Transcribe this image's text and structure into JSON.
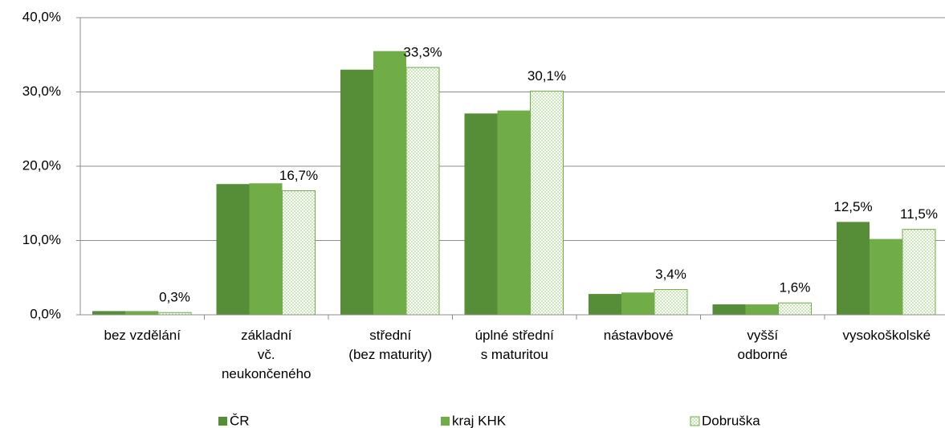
{
  "chart_data": {
    "type": "bar",
    "categories": [
      "bez vzdělání",
      "základní\nvč.\nneukončeného",
      "střední\n(bez maturity)",
      "úplné střední\ns maturitou",
      "nástavbové",
      "vyšší\nodborné",
      "vysokoškolské"
    ],
    "series": [
      {
        "name": "ČR",
        "color": "#568d37",
        "values": [
          0.5,
          17.6,
          33.0,
          27.1,
          2.8,
          1.4,
          12.5
        ],
        "value_labels": [
          null,
          null,
          null,
          null,
          null,
          null,
          "12,5%"
        ]
      },
      {
        "name": "kraj KHK",
        "color": "#70ad47",
        "values": [
          0.5,
          17.7,
          35.5,
          27.5,
          3.0,
          1.4,
          10.2
        ],
        "value_labels": [
          null,
          null,
          null,
          null,
          null,
          null,
          null
        ]
      },
      {
        "name": "Dobruška",
        "color": "#c9e6b6",
        "pattern": "checkered",
        "values": [
          0.3,
          16.7,
          33.3,
          30.1,
          3.4,
          1.6,
          11.5
        ],
        "value_labels": [
          "0,3%",
          "16,7%",
          "33,3%",
          "30,1%",
          "3,4%",
          "1,6%",
          "11,5%"
        ]
      }
    ],
    "ylim": [
      0,
      40
    ],
    "yticks": [
      {
        "value": 0,
        "label": "0,0%"
      },
      {
        "value": 10,
        "label": "10,0%"
      },
      {
        "value": 20,
        "label": "20,0%"
      },
      {
        "value": 30,
        "label": "30,0%"
      },
      {
        "value": 40,
        "label": "40,0%"
      }
    ],
    "grid": true,
    "legend": "bottom"
  }
}
